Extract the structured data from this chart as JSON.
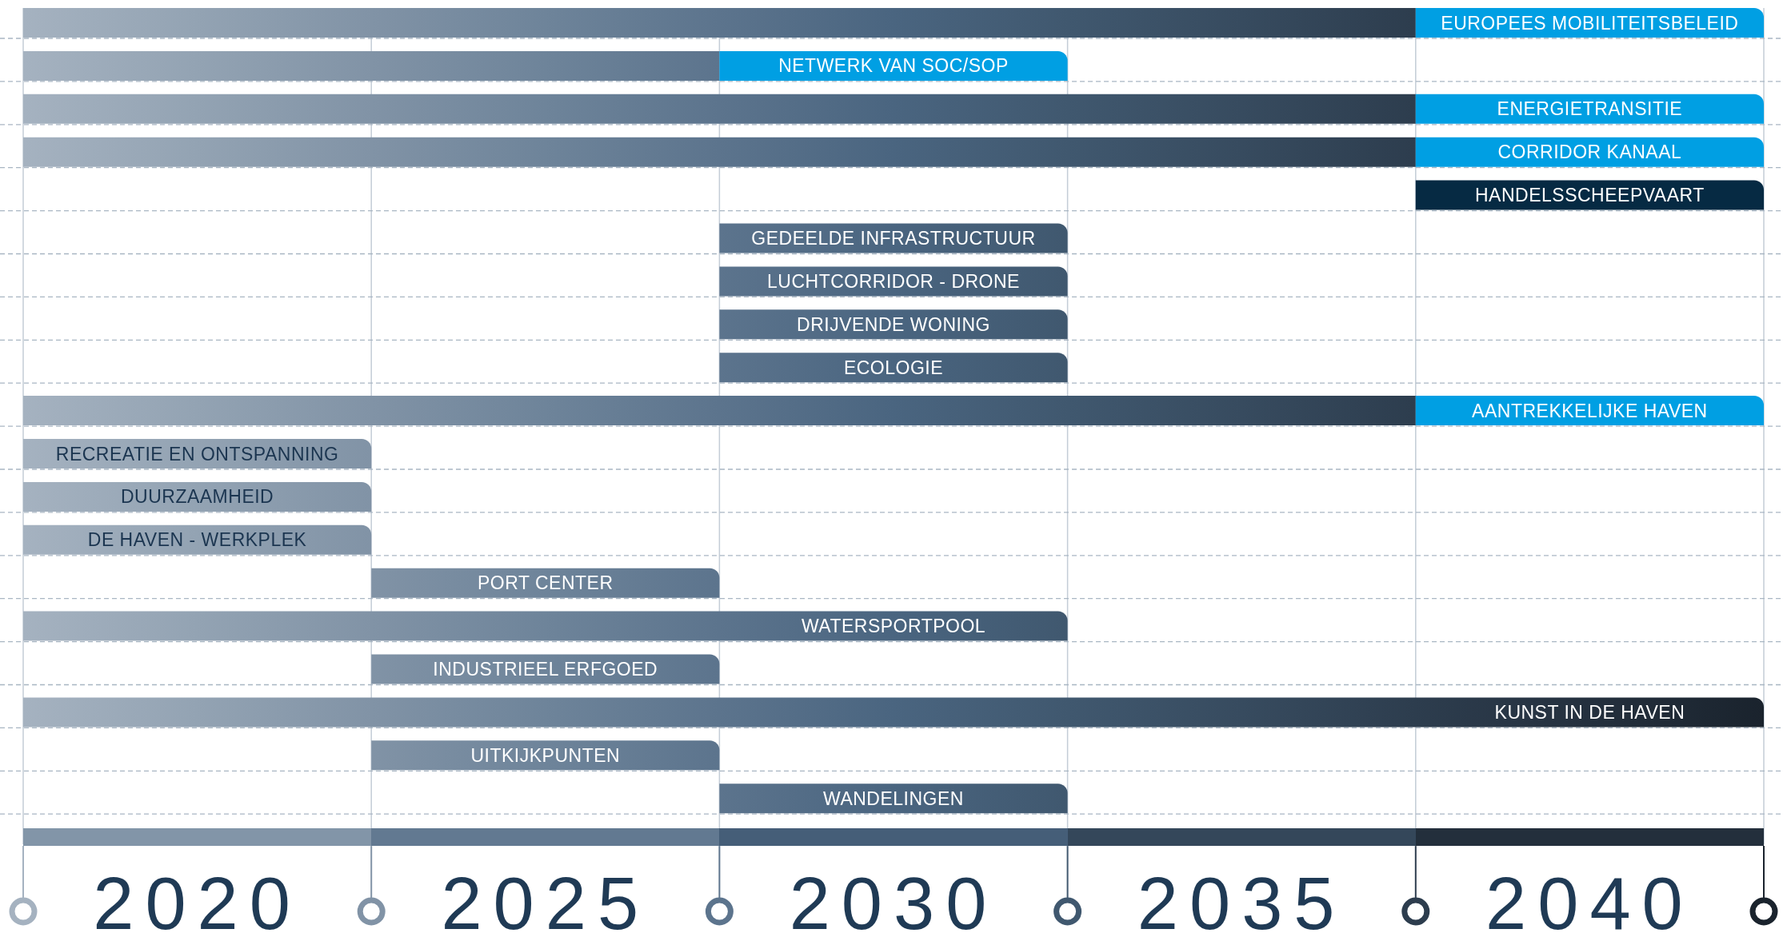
{
  "chart_data": {
    "type": "bar",
    "orientation": "horizontal",
    "categories": [
      "EUROPEES MOBILITEITSBELEID",
      "NETWERK VAN SOC/SOP",
      "ENERGIETRANSITIE",
      "CORRIDOR KANAAL",
      "HANDELSSCHEEPVAART",
      "GEDEELDE INFRASTRUCTUUR",
      "LUCHTCORRIDOR - DRONE",
      "DRIJVENDE WONING",
      "ECOLOGIE",
      "AANTREKKELIJKE HAVEN",
      "RECREATIE EN ONTSPANNING",
      "DUURZAAMHEID",
      "DE HAVEN - WERKPLEK",
      "PORT CENTER",
      "WATERSPORTPOOL",
      "INDUSTRIEEL ERFGOED",
      "KUNST IN DE HAVEN",
      "UITKIJKPUNTEN",
      "WANDELINGEN"
    ],
    "series": [
      {
        "color": "#4a6580",
        "base": [
          2017.5,
          2017.5,
          2017.5,
          2017.5,
          null,
          2027.5,
          2027.5,
          2027.5,
          2027.5,
          2017.5,
          2017.5,
          2017.5,
          2017.5,
          2022.5,
          2017.5,
          2022.5,
          2017.5,
          2022.5,
          2027.5
        ],
        "values": [
          20,
          10,
          20,
          20,
          null,
          5,
          5,
          5,
          5,
          20,
          5,
          5,
          5,
          5,
          15,
          5,
          25,
          5,
          5
        ]
      },
      {
        "color": "#009fe3",
        "base": [
          2037.5,
          2027.5,
          2037.5,
          2037.5,
          2037.5,
          null,
          null,
          null,
          null,
          2037.5,
          null,
          null,
          null,
          null,
          null,
          null,
          null,
          null,
          null
        ],
        "colors": [
          null,
          null,
          null,
          null,
          "#062a43",
          null,
          null,
          null,
          null,
          null,
          null,
          null,
          null,
          null,
          null,
          null,
          null,
          null,
          null
        ],
        "values": [
          5,
          5,
          5,
          5,
          5,
          null,
          null,
          null,
          null,
          5,
          null,
          null,
          null,
          null,
          null,
          null,
          null,
          null,
          null
        ]
      }
    ],
    "xlim": [
      2017.5,
      2042.5
    ],
    "xticks": [
      {
        "value": 2017.5,
        "label": null
      },
      2020,
      {
        "value": 2022.5,
        "label": null
      },
      2025,
      {
        "value": 2027.5,
        "label": null
      },
      2030,
      {
        "value": 2032.5,
        "label": null
      },
      2035,
      {
        "value": 2037.5,
        "label": null
      },
      2040,
      {
        "value": 2042.5,
        "label": null
      }
    ],
    "grid": true
  }
}
